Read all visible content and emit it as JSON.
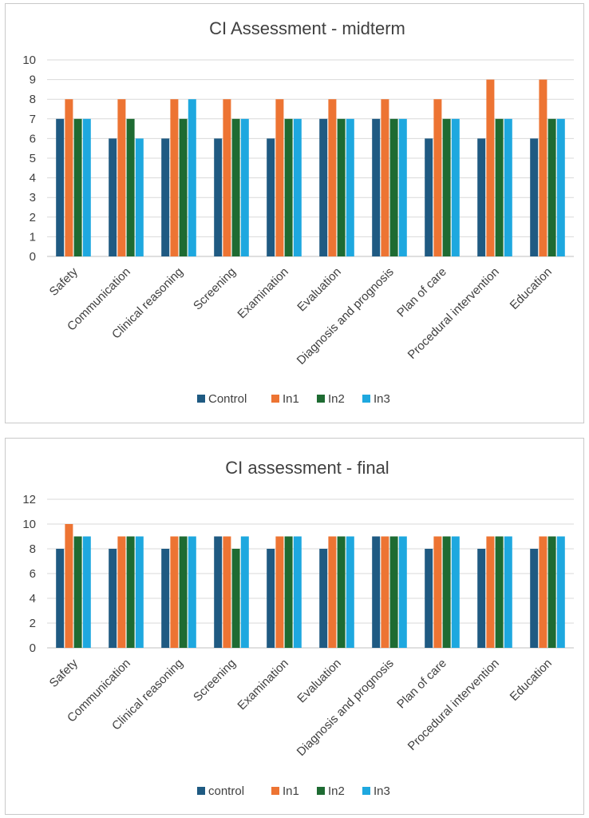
{
  "chart_data": [
    {
      "type": "bar",
      "title": "CI Assessment - midterm",
      "xlabel": "",
      "ylabel": "",
      "ylim": [
        0,
        10
      ],
      "yticks": [
        0,
        1,
        2,
        3,
        4,
        5,
        6,
        7,
        8,
        9,
        10
      ],
      "grid": true,
      "legend_position": "bottom",
      "categories": [
        "Safety",
        "Communication",
        "Clinical reasoning",
        "Screening",
        "Examination",
        "Evaluation",
        "Diagnosis and prognosis",
        "Plan of care",
        "Procedural intervention",
        "Education"
      ],
      "series": [
        {
          "name": "Control",
          "color": "#1f5a82",
          "values": [
            7,
            6,
            6,
            6,
            6,
            7,
            7,
            6,
            6,
            6
          ]
        },
        {
          "name": "In1",
          "color": "#ed7433",
          "values": [
            8,
            8,
            8,
            8,
            8,
            8,
            8,
            8,
            9,
            9
          ]
        },
        {
          "name": "In2",
          "color": "#1e6b32",
          "values": [
            7,
            7,
            7,
            7,
            7,
            7,
            7,
            7,
            7,
            7
          ]
        },
        {
          "name": "In3",
          "color": "#1ea8df",
          "values": [
            7,
            6,
            8,
            7,
            7,
            7,
            7,
            7,
            7,
            7
          ]
        }
      ]
    },
    {
      "type": "bar",
      "title": "CI assessment - final",
      "xlabel": "",
      "ylabel": "",
      "ylim": [
        0,
        12
      ],
      "yticks": [
        0,
        2,
        4,
        6,
        8,
        10,
        12
      ],
      "grid": true,
      "legend_position": "bottom",
      "categories": [
        "Safety",
        "Communication",
        "Clinical reasoning",
        "Screening",
        "Examination",
        "Evaluation",
        "Diagnosis and prognosis",
        "Plan of care",
        "Procedural intervention",
        "Education"
      ],
      "series": [
        {
          "name": "control",
          "color": "#1f5a82",
          "values": [
            8,
            8,
            8,
            9,
            8,
            8,
            9,
            8,
            8,
            8
          ]
        },
        {
          "name": "In1",
          "color": "#ed7433",
          "values": [
            10,
            9,
            9,
            9,
            9,
            9,
            9,
            9,
            9,
            9
          ]
        },
        {
          "name": "In2",
          "color": "#1e6b32",
          "values": [
            9,
            9,
            9,
            8,
            9,
            9,
            9,
            9,
            9,
            9
          ]
        },
        {
          "name": "In3",
          "color": "#1ea8df",
          "values": [
            9,
            9,
            9,
            9,
            9,
            9,
            9,
            9,
            9,
            9
          ]
        }
      ]
    }
  ]
}
